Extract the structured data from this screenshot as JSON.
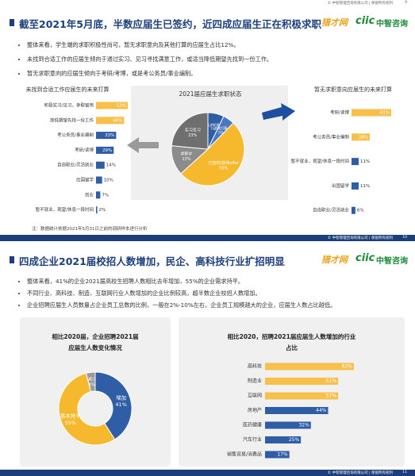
{
  "strips": [
    {
      "text": "© 中智管理咨询有限公司 | 保留所有权利",
      "page": "9"
    },
    {
      "text": "© 中智管理咨询有限公司 | 保留所有权利",
      "page": "10"
    },
    {
      "text": "© 中智管理咨询有限公司 | 保留所有权利",
      "page": "11"
    }
  ],
  "logos": {
    "leader": "猎才网",
    "ciic": "ciic",
    "brand": "中智咨询"
  },
  "slides": [
    {
      "title": "截至2021年5月底，半数应届生已签约，近四成应届生正在积极求职",
      "bullets": [
        "整体来看，学生端的求职积极性尚可，暂无求职意向及其他打算的应届生占比12%。",
        "未找到合适工作的应届生倾向于通过实习、见习寻找满意工作，或适当降低期望先找到一份工作。",
        "暂无求职意向的应届生倾向于考研/考博，或是考公务员/事业编制。"
      ],
      "note": "注：数据统计依据2021年5月31日之前的调研样本进行分析",
      "charts": [
        {
          "type": "bar",
          "title": "未找到合适工作应届生的未来打算",
          "categories": [
            "积极实习/见习，争取留用",
            "放低期望先找一份工作",
            "考公务员/事业编制",
            "考研/读博",
            "自由职业/灵活就业",
            "出国留学",
            "创业",
            "暂不就业，观望/休息一段时间"
          ],
          "values": [
            52,
            46,
            33,
            29,
            14,
            10,
            7,
            2
          ],
          "value_labels": [
            "52%",
            "46%",
            "33%",
            "29%",
            "14%",
            "10%",
            "7%",
            "2%"
          ],
          "colors": [
            "#f6c04a",
            "#f6c04a",
            "#2f5da6",
            "#2f5da6",
            "#2f5da6",
            "#2f5da6",
            "#2f5da6",
            "#2f5da6"
          ]
        },
        {
          "type": "pie",
          "title": "2021届应届生求职状态",
          "categories": [
            "暂无求职意向",
            "其他打算",
            "已签约/获得offer",
            "求职中",
            "实习见习"
          ],
          "values": [
            7,
            5,
            50,
            13,
            23
          ],
          "value_labels": [
            "7%",
            "5%",
            "50%",
            "13%",
            "23%"
          ],
          "colors": [
            "#2f5da6",
            "#4a78c0",
            "#f6b92e",
            "#8c8c8c",
            "#6f6f6f"
          ]
        },
        {
          "type": "bar",
          "title": "暂无求职意向应届生的未来打算",
          "categories": [
            "考研/读博",
            "考公务员/事业编制",
            "暂不就业，观望/休息一段时间",
            "出国留学",
            "自由职业/灵活就业"
          ],
          "values": [
            61,
            28,
            11,
            11,
            6
          ],
          "value_labels": [
            "61%",
            "28%",
            "11%",
            "11%",
            "6%"
          ],
          "colors": [
            "#f6c04a",
            "#f6c04a",
            "#2f5da6",
            "#2f5da6",
            "#2f5da6"
          ]
        }
      ]
    },
    {
      "title": "四成企业2021届校招人数增加，民企、高科技行业扩招明显",
      "bullets": [
        "整体来看，41%的企业2021届高校生招聘人数相比去年增加，55%的企业需求持平。",
        "不同行业、高科技、制造、互联网行业人数增加的企业比例较高，超半数企业校招人数增加。",
        "企业招聘应届生人员数量占企业员工总数的比例，一般在2%-10%左右，企业员工规模越大的企业，应届生人数占比越低。"
      ],
      "charts": [
        {
          "type": "pie",
          "title": "相比2020届，企业招聘2021届应届生人数变化情况",
          "categories": [
            "增加",
            "基本持平",
            "减少"
          ],
          "values": [
            41,
            55,
            4
          ],
          "value_labels": [
            "41%",
            "55%",
            "4%"
          ],
          "colors": [
            "#2f5da6",
            "#f6b92e",
            "#9a9a9a"
          ]
        },
        {
          "type": "bar",
          "title": "相比2020，招聘2021届应届生人数增加的行业占比",
          "categories": [
            "高科技",
            "制造业",
            "互联网",
            "房地产",
            "医药健康",
            "汽车行业",
            "销售贸易/消费品"
          ],
          "values": [
            62,
            51,
            51,
            44,
            32,
            25,
            17
          ],
          "value_labels": [
            "62%",
            "51%",
            "51%",
            "44%",
            "32%",
            "25%",
            "17%"
          ],
          "colors": [
            "#f6c04a",
            "#f6c04a",
            "#f6c04a",
            "#2f5da6",
            "#2f5da6",
            "#2f5da6",
            "#2f5da6"
          ]
        }
      ]
    }
  ]
}
